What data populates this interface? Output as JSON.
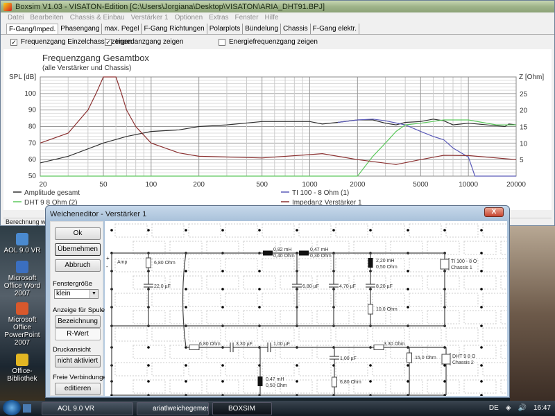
{
  "window": {
    "title": "Boxsim V1.03 - VISATON-Edition  [C:\\Users\\Jorgiana\\Desktop\\VISATON\\ARIA_DHT91.BPJ]"
  },
  "menu": [
    "Datei",
    "Bearbeiten",
    "Chassis & Einbau",
    "Verstärker 1",
    "Optionen",
    "Extras",
    "Fenster",
    "Hilfe"
  ],
  "tabs": [
    {
      "label": "F-Gang/Imped.",
      "active": true
    },
    {
      "label": "Phasengang"
    },
    {
      "label": "max. Pegel"
    },
    {
      "label": "F-Gang Richtungen"
    },
    {
      "label": "Polarplots"
    },
    {
      "label": "Bündelung"
    },
    {
      "label": "Chassis"
    },
    {
      "label": "F-Gang elektr."
    }
  ],
  "options": [
    {
      "label": "Frequenzgang Einzelchassis zeigen",
      "checked": true
    },
    {
      "label": "Impedanzgang zeigen",
      "checked": true
    },
    {
      "label": "Energiefrequenzgang zeigen",
      "checked": false
    }
  ],
  "status": "Berechnung war",
  "chart_data": {
    "type": "line",
    "title": "Frequenzgang Gesamtbox",
    "subtitle": "(alle Verstärker und Chassis)",
    "ylabel": "SPL [dB]",
    "y2label": "Z [Ohm]",
    "xscale": "log",
    "xlim": [
      20,
      20000
    ],
    "ylim": [
      50,
      110
    ],
    "y2lim": [
      0,
      30
    ],
    "grid": true,
    "legend": "bottom",
    "xticks": [
      "20",
      "50",
      "100",
      "200",
      "500",
      "1000",
      "2000",
      "5000",
      "10000",
      "20000"
    ],
    "yticks": [
      "100",
      "90",
      "80",
      "70",
      "60",
      "50"
    ],
    "y2ticks": [
      "25",
      "20",
      "15",
      "10",
      "5"
    ],
    "series": [
      {
        "name": "Amplitude gesamt",
        "axis": "left",
        "color": "#303030",
        "x": [
          20,
          30,
          50,
          70,
          100,
          150,
          200,
          300,
          500,
          700,
          1000,
          1200,
          1500,
          2000,
          2500,
          3000,
          3500,
          4000,
          5000,
          6000,
          7000,
          8000,
          10000,
          15000,
          17000,
          18000,
          20000
        ],
        "y": [
          58,
          62,
          70,
          74,
          77,
          78,
          80,
          81,
          83,
          83,
          83,
          81.5,
          82.5,
          84,
          84,
          82,
          81,
          82.5,
          83,
          84.5,
          83.5,
          81,
          82,
          80.5,
          80,
          81.5,
          81
        ]
      },
      {
        "name": "TI 100 - 8 Ohm (1)",
        "axis": "left",
        "color": "#5a5ab8",
        "x": [
          1500,
          2000,
          2500,
          3000,
          4000,
          5000,
          6000,
          7000,
          8000,
          10000,
          11000,
          20000
        ],
        "y": [
          82.5,
          84,
          84.5,
          83.5,
          81,
          77,
          74,
          72,
          67,
          61.5,
          50,
          50
        ]
      },
      {
        "name": "DHT 9 8 Ohm (2)",
        "axis": "left",
        "color": "#5cc85c",
        "x": [
          20,
          2000,
          2500,
          3000,
          3500,
          4000,
          5000,
          7000,
          10000,
          15000,
          20000
        ],
        "y": [
          50,
          50,
          62,
          70,
          77,
          81,
          82,
          84,
          84,
          81,
          81
        ]
      },
      {
        "name": "Impedanz Verstärker 1",
        "axis": "right",
        "color": "#8a3030",
        "x": [
          20,
          30,
          40,
          45,
          50,
          60,
          65,
          70,
          80,
          100,
          150,
          200,
          500,
          1000,
          1200,
          2000,
          3500,
          5000,
          7000,
          10000,
          20000
        ],
        "y": [
          10,
          13,
          20,
          25,
          30,
          30,
          25,
          20,
          15,
          10,
          7,
          6,
          5.5,
          6.5,
          6.8,
          5,
          3.5,
          5,
          6.3,
          6.2,
          5
        ]
      }
    ]
  },
  "dialog": {
    "title": "Weicheneditor - Verstärker 1",
    "close": "X",
    "ok": "Ok",
    "apply": "Übernehmen",
    "cancel": "Abbruch",
    "size_label": "Fenstergröße",
    "size_value": "klein",
    "coil_label": "Anzeige für Spulen",
    "coil_opt1": "Bezeichnung",
    "coil_opt2": "R-Wert",
    "print_label": "Druckansicht",
    "print_btn": "nicht aktiviert",
    "free_label": "Freie Verbindungen",
    "free_btn": "editieren"
  },
  "circuit": {
    "amp": "Amp",
    "plus": "+",
    "minus": "-",
    "parts": [
      "6,80 Ohm",
      "22,0 µF",
      "0,82 mH",
      "0,40 Ohm",
      "0,47 mH",
      "0,30 Ohm",
      "6,80 µF",
      "4,70 µF",
      "2,20 mH",
      "0,50 Ohm",
      "8,20 µF",
      "10,0 Ohm",
      "6,80 Ohm",
      "3,30 µF",
      "1,00 µF",
      "0,47 mH",
      "0,50 Ohm",
      "1,00 µF",
      "6,80 Ohm",
      "3,30 Ohm",
      "15,0 Ohm"
    ],
    "driver1": [
      "TI 100 - 8 O",
      "Chassis 1"
    ],
    "driver2": [
      "DHT 9 8 O",
      "Chassis 2"
    ]
  },
  "desktop": [
    "AOL 9.0 VR",
    "Microsoft Office Word 2007",
    "Microsoft Office PowerPoint 2007",
    "Office-Bibliothek"
  ],
  "taskbar": {
    "items": [
      "AOL 9.0 VR",
      "ariatlweichegemess...",
      "BOXSIM"
    ],
    "lang": "DE",
    "time": "16:47"
  }
}
